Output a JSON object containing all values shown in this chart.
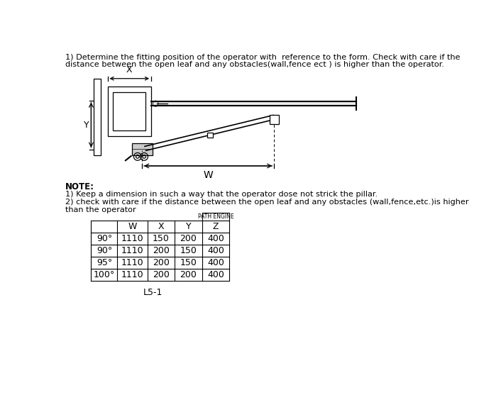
{
  "title_text1": "1) Determine the fitting position of the operator with  reference to the form. Check with care if the",
  "title_text2": "distance between the open leaf and any obstacles(wall,fence ect ) is higher than the operator.",
  "note_line1": "NOTE:",
  "note_line2": "1) Keep a dimension in such a way that the operator dose not strick the pillar.",
  "note_line3": "2) check with care if the distance between the open leaf and any obstacles (wall,fence,etc.)is higher",
  "note_line4": "than the operator",
  "table_header_label": "PATH ENGINE",
  "table_col_headers": [
    "",
    "W",
    "X",
    "Y",
    "Z"
  ],
  "table_rows": [
    [
      "90°",
      "1110",
      "150",
      "200",
      "400"
    ],
    [
      "90°",
      "1110",
      "200",
      "150",
      "400"
    ],
    [
      "95°",
      "1110",
      "200",
      "150",
      "400"
    ],
    [
      "100°",
      "1110",
      "200",
      "200",
      "400"
    ]
  ],
  "caption": "L5-1",
  "bg_color": "#ffffff",
  "text_color": "#000000",
  "line_color": "#000000",
  "gray_color": "#aaaaaa"
}
